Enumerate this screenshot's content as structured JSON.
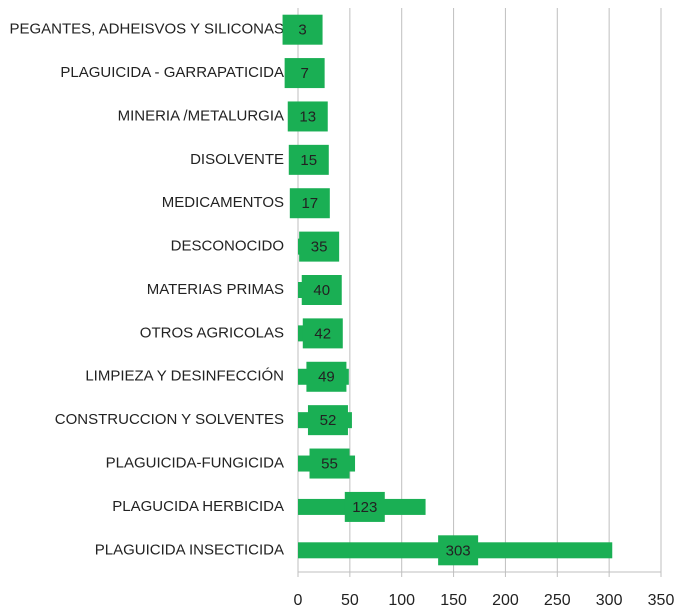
{
  "chart_data": {
    "type": "bar",
    "orientation": "horizontal",
    "categories": [
      "PEGANTES, ADHEISVOS Y SILICONAS",
      "PLAGUICIDA - GARRAPATICIDA",
      "MINERIA /METALURGIA",
      "DISOLVENTE",
      "MEDICAMENTOS",
      "DESCONOCIDO",
      "MATERIAS PRIMAS",
      "OTROS AGRICOLAS",
      "LIMPIEZA Y DESINFECCIÓN",
      "CONSTRUCCION Y SOLVENTES",
      "PLAGUICIDA-FUNGICIDA",
      "PLAGUCIDA HERBICIDA",
      "PLAGUICIDA INSECTICIDA"
    ],
    "values": [
      3,
      7,
      13,
      15,
      17,
      35,
      40,
      42,
      49,
      52,
      55,
      123,
      303
    ],
    "color": "#1aaf54",
    "xlim": [
      0,
      350
    ],
    "xticks": [
      0,
      50,
      100,
      150,
      200,
      250,
      300,
      350
    ],
    "grid": true
  }
}
